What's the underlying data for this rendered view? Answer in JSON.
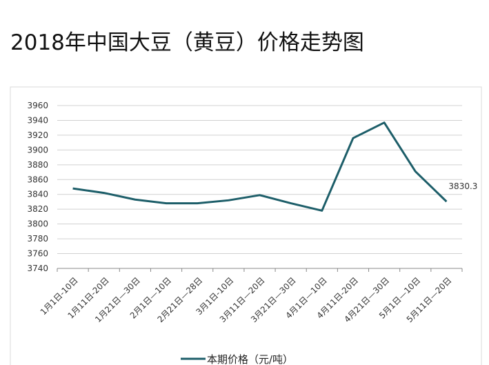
{
  "chart_data": {
    "type": "line",
    "title": "2018年中国大豆（黄豆）价格走势图",
    "categories": [
      "1月1日-10日",
      "1月11日-20日",
      "1月21日—30日",
      "2月1日—10日",
      "2月21日—28日",
      "3月1日-10日",
      "3月11日—20日",
      "3月21日—30日",
      "4月1日—10日",
      "4月11日-20日",
      "4月21日—30日",
      "5月1日—10日",
      "5月11日—20日"
    ],
    "series": [
      {
        "name": "本期价格（元/吨）",
        "color": "#1d5e69",
        "values": [
          3848,
          3842,
          3833,
          3828,
          3828,
          3832,
          3839,
          3828,
          3818,
          3916,
          3937,
          3871,
          3830.3
        ],
        "value_labels": [
          null,
          null,
          null,
          null,
          null,
          null,
          null,
          null,
          null,
          null,
          null,
          null,
          "3830.3"
        ]
      }
    ],
    "ylim": [
      3740,
      3960
    ],
    "yticks": [
      3740,
      3760,
      3780,
      3800,
      3820,
      3840,
      3860,
      3880,
      3900,
      3920,
      3940,
      3960
    ],
    "grid": true,
    "legend": "bottom"
  }
}
